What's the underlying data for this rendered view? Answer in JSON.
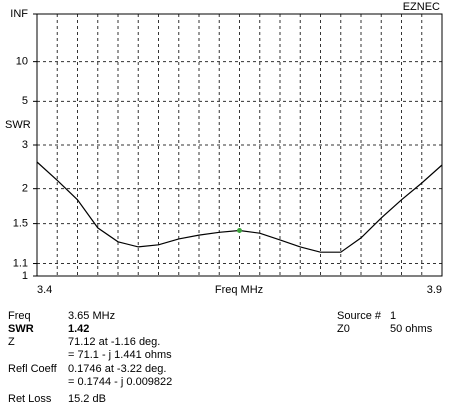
{
  "chart_data": {
    "type": "line",
    "brand": "EZNEC",
    "y_label": "SWR",
    "x_label": "Freq MHz",
    "scale": "reflection",
    "x": [
      3.4,
      3.425,
      3.45,
      3.475,
      3.5,
      3.525,
      3.55,
      3.575,
      3.6,
      3.625,
      3.65,
      3.675,
      3.7,
      3.725,
      3.75,
      3.775,
      3.8,
      3.825,
      3.85,
      3.875,
      3.9
    ],
    "values": [
      2.54,
      2.15,
      1.82,
      1.45,
      1.3,
      1.25,
      1.27,
      1.33,
      1.37,
      1.4,
      1.42,
      1.39,
      1.32,
      1.25,
      1.2,
      1.2,
      1.34,
      1.57,
      1.82,
      2.1,
      2.47
    ],
    "color": "#000000",
    "marker": {
      "x": 3.65,
      "y": 1.42,
      "color": "#3aa53a"
    },
    "xlim": [
      3.4,
      3.9
    ],
    "xticks": [
      3.4,
      3.9
    ],
    "xgrid": [
      3.425,
      3.45,
      3.475,
      3.5,
      3.525,
      3.55,
      3.575,
      3.6,
      3.625,
      3.65,
      3.675,
      3.7,
      3.725,
      3.75,
      3.775,
      3.8,
      3.825,
      3.85,
      3.875
    ],
    "ylim": [
      1,
      "INF"
    ],
    "yticks": [
      1,
      1.1,
      1.5,
      2,
      3,
      5,
      10,
      "INF"
    ],
    "grid": true
  },
  "readout": [
    {
      "label": "Freq",
      "value": "3.65 MHz"
    },
    {
      "label": "SWR",
      "value": "1.42",
      "bold": true
    },
    {
      "label": "Z",
      "value": "71.12 at -1.16 deg."
    },
    {
      "value": "= 71.1 - j 1.441 ohms"
    },
    {
      "label": "Refl Coeff",
      "value": "0.1746 at -3.22 deg."
    },
    {
      "value": "= 0.1744 - j 0.009822"
    },
    {
      "label": "Ret Loss",
      "value": "15.2 dB"
    }
  ],
  "source": [
    {
      "label": "Source #",
      "value": "1"
    },
    {
      "label": "Z0",
      "value": "50 ohms"
    }
  ]
}
